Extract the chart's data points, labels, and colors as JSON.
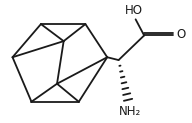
{
  "background_color": "#ffffff",
  "line_color": "#1a1a1a",
  "line_width": 1.3,
  "text_color": "#1a1a1a",
  "font_size": 8.5,
  "ho_text": "HO",
  "o_text": "O",
  "nh2_text": "NH₂",
  "figsize": [
    1.92,
    1.23
  ],
  "dpi": 100
}
